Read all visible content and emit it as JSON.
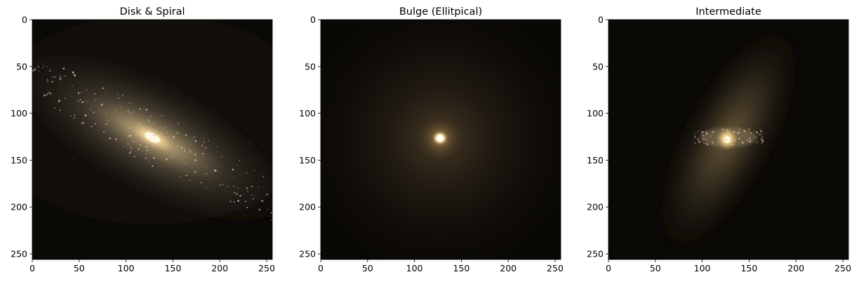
{
  "panels": [
    {
      "title": "Disk & Spiral",
      "x_ticks": [
        0,
        50,
        100,
        150,
        200,
        250
      ],
      "y_ticks": [
        0,
        50,
        100,
        150,
        200,
        250
      ],
      "image": "galaxy-disk-spiral",
      "colors": {
        "background": "#0b0906",
        "glow": "#a89a7c",
        "core": "#fff1c8",
        "stars": "#d9b6c4"
      }
    },
    {
      "title": "Bulge (Ellitpical)",
      "x_ticks": [
        0,
        50,
        100,
        150,
        200,
        250
      ],
      "y_ticks": [
        0,
        50,
        100,
        150,
        200,
        250
      ],
      "image": "galaxy-bulge-elliptical",
      "colors": {
        "background": "#0b0906",
        "glow": "#5a4a30",
        "core": "#fff4d0",
        "stars": "#d9b6c4"
      }
    },
    {
      "title": "Intermediate",
      "x_ticks": [
        0,
        50,
        100,
        150,
        200,
        250
      ],
      "y_ticks": [
        0,
        50,
        100,
        150,
        200,
        250
      ],
      "image": "galaxy-intermediate",
      "colors": {
        "background": "#0b0906",
        "glow": "#9a8558",
        "core": "#ffe9b0",
        "stars": "#d9b6c4"
      }
    }
  ],
  "axis_limits": {
    "x": [
      0,
      256
    ],
    "y": [
      256,
      0
    ]
  }
}
